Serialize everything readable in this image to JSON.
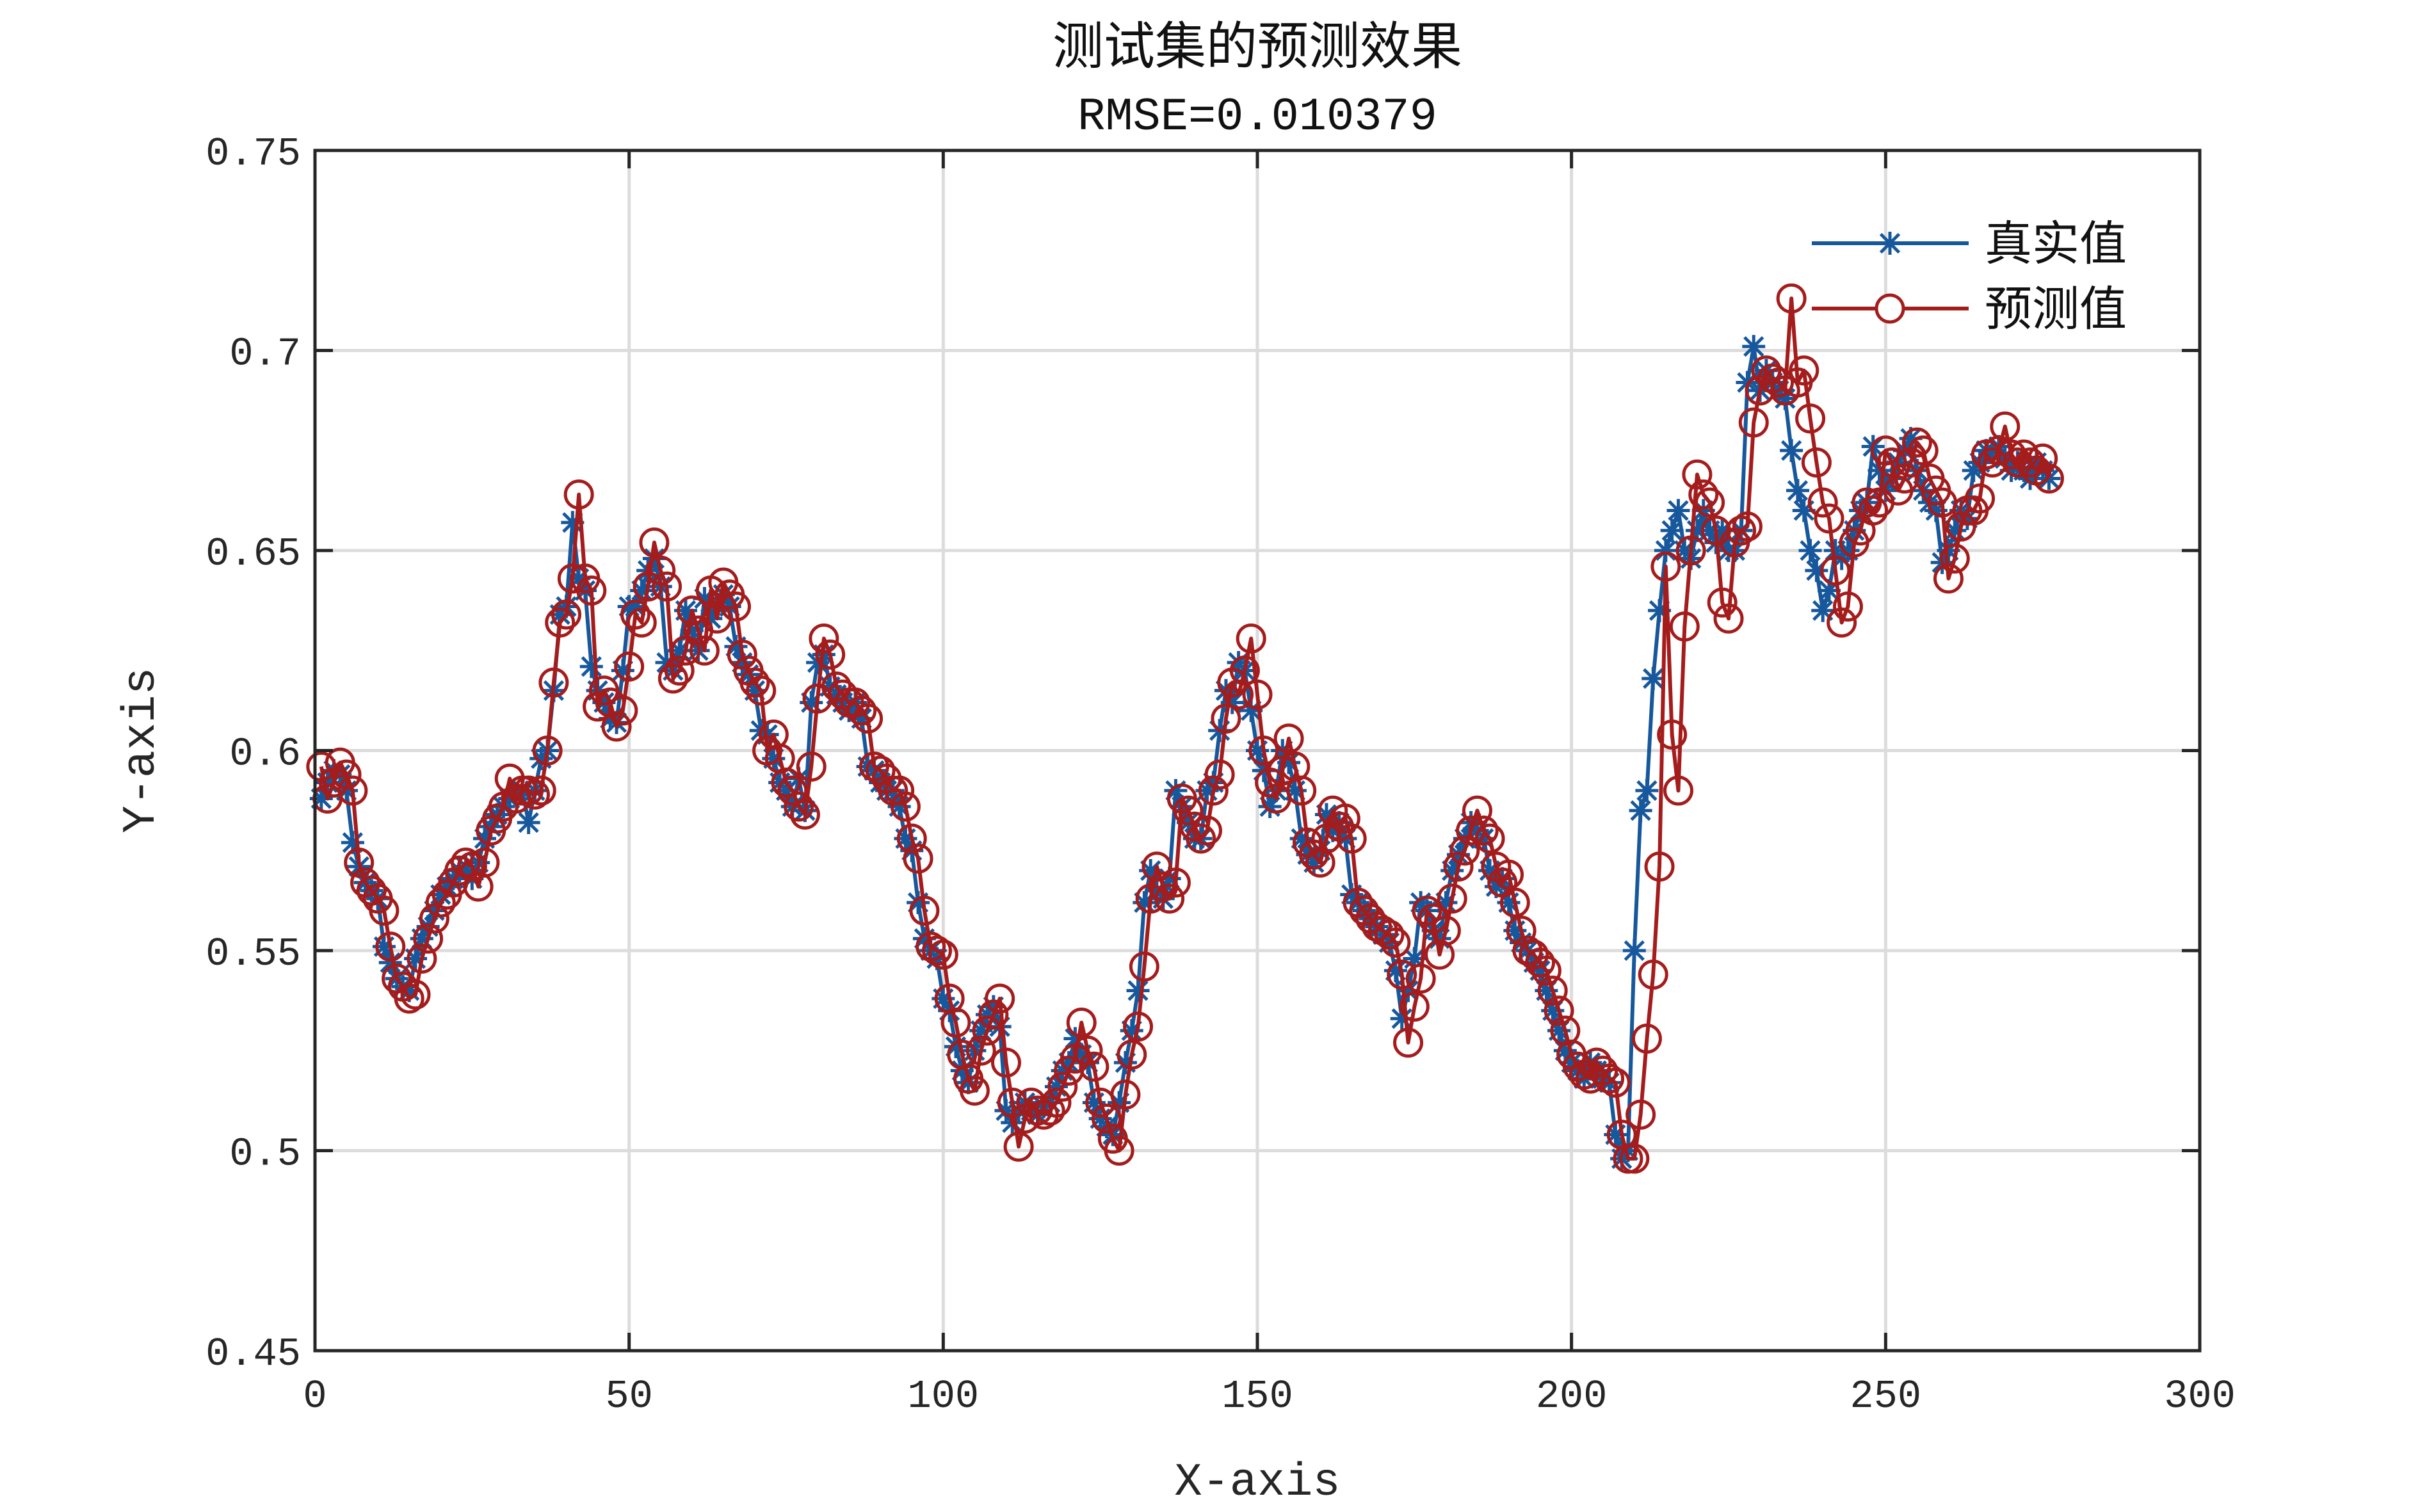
{
  "chart_data": {
    "type": "line",
    "title": "测试集的预测效果",
    "subtitle": "RMSE=0.010379",
    "xlabel": "X-axis",
    "ylabel": "Y-axis",
    "xlim": [
      0,
      300
    ],
    "ylim": [
      0.45,
      0.75
    ],
    "xticks": [
      0,
      50,
      100,
      150,
      200,
      250,
      300
    ],
    "xtick_labels": [
      "0",
      "50",
      "100",
      "150",
      "200",
      "250",
      "300"
    ],
    "yticks": [
      0.45,
      0.5,
      0.55,
      0.6,
      0.65,
      0.7,
      0.75
    ],
    "ytick_labels": [
      "0.45",
      "0.5",
      "0.55",
      "0.6",
      "0.65",
      "0.7",
      "0.75"
    ],
    "grid": true,
    "legend_position": "top-right",
    "series": [
      {
        "name": "真实值",
        "color": "#17589c",
        "marker": "asterisk",
        "values": [
          0.588,
          0.592,
          0.595,
          0.594,
          0.59,
          0.577,
          0.571,
          0.567,
          0.565,
          0.563,
          0.551,
          0.547,
          0.543,
          0.541,
          0.54,
          0.548,
          0.553,
          0.556,
          0.56,
          0.564,
          0.566,
          0.568,
          0.57,
          0.571,
          0.568,
          0.572,
          0.578,
          0.581,
          0.584,
          0.586,
          0.588,
          0.589,
          0.59,
          0.582,
          0.59,
          0.598,
          0.6,
          0.615,
          0.634,
          0.636,
          0.657,
          0.643,
          0.64,
          0.621,
          0.615,
          0.612,
          0.608,
          0.607,
          0.62,
          0.636,
          0.636,
          0.64,
          0.645,
          0.648,
          0.641,
          0.622,
          0.62,
          0.625,
          0.635,
          0.63,
          0.625,
          0.638,
          0.633,
          0.636,
          0.639,
          0.636,
          0.626,
          0.622,
          0.619,
          0.615,
          0.605,
          0.604,
          0.598,
          0.592,
          0.59,
          0.586,
          0.593,
          0.585,
          0.612,
          0.622,
          0.624,
          0.616,
          0.614,
          0.612,
          0.61,
          0.612,
          0.608,
          0.596,
          0.595,
          0.592,
          0.59,
          0.59,
          0.586,
          0.578,
          0.575,
          0.562,
          0.553,
          0.55,
          0.548,
          0.538,
          0.535,
          0.526,
          0.52,
          0.517,
          0.525,
          0.53,
          0.534,
          0.536,
          0.531,
          0.51,
          0.507,
          0.51,
          0.512,
          0.51,
          0.509,
          0.511,
          0.512,
          0.516,
          0.52,
          0.522,
          0.528,
          0.524,
          0.522,
          0.512,
          0.508,
          0.506,
          0.504,
          0.512,
          0.522,
          0.53,
          0.54,
          0.562,
          0.57,
          0.565,
          0.563,
          0.568,
          0.59,
          0.586,
          0.582,
          0.578,
          0.578,
          0.59,
          0.592,
          0.605,
          0.615,
          0.612,
          0.622,
          0.62,
          0.61,
          0.6,
          0.595,
          0.586,
          0.59,
          0.6,
          0.597,
          0.59,
          0.578,
          0.574,
          0.572,
          0.575,
          0.584,
          0.58,
          0.582,
          0.578,
          0.564,
          0.562,
          0.56,
          0.558,
          0.556,
          0.554,
          0.552,
          0.545,
          0.533,
          0.54,
          0.548,
          0.562,
          0.56,
          0.555,
          0.553,
          0.562,
          0.57,
          0.574,
          0.578,
          0.582,
          0.58,
          0.578,
          0.57,
          0.566,
          0.568,
          0.562,
          0.555,
          0.552,
          0.55,
          0.547,
          0.545,
          0.54,
          0.535,
          0.53,
          0.525,
          0.522,
          0.52,
          0.518,
          0.522,
          0.52,
          0.518,
          0.517,
          0.504,
          0.498,
          0.5,
          0.55,
          0.585,
          0.59,
          0.618,
          0.635,
          0.65,
          0.655,
          0.66,
          0.65,
          0.648,
          0.655,
          0.66,
          0.655,
          0.652,
          0.655,
          0.65,
          0.65,
          0.655,
          0.692,
          0.701,
          0.69,
          0.695,
          0.692,
          0.69,
          0.688,
          0.675,
          0.665,
          0.66,
          0.65,
          0.645,
          0.635,
          0.64,
          0.65,
          0.648,
          0.65,
          0.655,
          0.66,
          0.662,
          0.676,
          0.67,
          0.665,
          0.668,
          0.672,
          0.675,
          0.678,
          0.67,
          0.665,
          0.662,
          0.66,
          0.647,
          0.65,
          0.655,
          0.66,
          0.658,
          0.67,
          0.672,
          0.675,
          0.675,
          0.676,
          0.673,
          0.67,
          0.672,
          0.67,
          0.668,
          0.672,
          0.67,
          0.668
        ]
      },
      {
        "name": "预测值",
        "color": "#a51c1c",
        "marker": "circle",
        "values": [
          0.596,
          0.588,
          0.592,
          0.597,
          0.594,
          0.59,
          0.572,
          0.567,
          0.565,
          0.563,
          0.56,
          0.551,
          0.543,
          0.541,
          0.538,
          0.539,
          0.548,
          0.553,
          0.558,
          0.562,
          0.564,
          0.567,
          0.57,
          0.572,
          0.571,
          0.566,
          0.572,
          0.58,
          0.583,
          0.586,
          0.593,
          0.588,
          0.59,
          0.59,
          0.589,
          0.59,
          0.6,
          0.617,
          0.632,
          0.634,
          0.643,
          0.664,
          0.643,
          0.64,
          0.611,
          0.615,
          0.612,
          0.606,
          0.61,
          0.621,
          0.634,
          0.632,
          0.641,
          0.652,
          0.645,
          0.641,
          0.618,
          0.62,
          0.625,
          0.635,
          0.63,
          0.625,
          0.64,
          0.633,
          0.642,
          0.639,
          0.636,
          0.624,
          0.62,
          0.617,
          0.615,
          0.6,
          0.604,
          0.598,
          0.592,
          0.59,
          0.586,
          0.584,
          0.596,
          0.613,
          0.628,
          0.624,
          0.616,
          0.614,
          0.612,
          0.612,
          0.61,
          0.608,
          0.596,
          0.595,
          0.593,
          0.59,
          0.59,
          0.586,
          0.578,
          0.573,
          0.56,
          0.551,
          0.55,
          0.549,
          0.538,
          0.532,
          0.524,
          0.518,
          0.515,
          0.525,
          0.53,
          0.534,
          0.538,
          0.522,
          0.512,
          0.501,
          0.508,
          0.512,
          0.51,
          0.509,
          0.51,
          0.512,
          0.516,
          0.52,
          0.523,
          0.532,
          0.525,
          0.521,
          0.512,
          0.508,
          0.503,
          0.5,
          0.514,
          0.524,
          0.531,
          0.546,
          0.563,
          0.571,
          0.566,
          0.563,
          0.567,
          0.588,
          0.585,
          0.581,
          0.578,
          0.58,
          0.59,
          0.594,
          0.608,
          0.617,
          0.614,
          0.62,
          0.628,
          0.614,
          0.6,
          0.592,
          0.588,
          0.595,
          0.603,
          0.596,
          0.59,
          0.577,
          0.574,
          0.572,
          0.578,
          0.585,
          0.581,
          0.583,
          0.578,
          0.562,
          0.56,
          0.558,
          0.556,
          0.555,
          0.554,
          0.552,
          0.544,
          0.527,
          0.536,
          0.543,
          0.56,
          0.558,
          0.549,
          0.555,
          0.563,
          0.571,
          0.575,
          0.58,
          0.585,
          0.58,
          0.578,
          0.571,
          0.567,
          0.569,
          0.562,
          0.555,
          0.55,
          0.549,
          0.547,
          0.545,
          0.54,
          0.535,
          0.53,
          0.524,
          0.521,
          0.519,
          0.518,
          0.522,
          0.52,
          0.518,
          0.517,
          0.504,
          0.498,
          0.498,
          0.509,
          0.528,
          0.544,
          0.571,
          0.646,
          0.604,
          0.59,
          0.631,
          0.65,
          0.669,
          0.664,
          0.662,
          0.655,
          0.637,
          0.633,
          0.652,
          0.655,
          0.656,
          0.682,
          0.69,
          0.695,
          0.693,
          0.692,
          0.69,
          0.713,
          0.692,
          0.695,
          0.683,
          0.672,
          0.662,
          0.658,
          0.645,
          0.632,
          0.636,
          0.652,
          0.655,
          0.662,
          0.66,
          0.662,
          0.675,
          0.672,
          0.665,
          0.668,
          0.672,
          0.677,
          0.675,
          0.668,
          0.665,
          0.662,
          0.643,
          0.648,
          0.656,
          0.66,
          0.66,
          0.663,
          0.674,
          0.672,
          0.675,
          0.681,
          0.674,
          0.672,
          0.674,
          0.672,
          0.67,
          0.673,
          0.668
        ]
      }
    ]
  }
}
